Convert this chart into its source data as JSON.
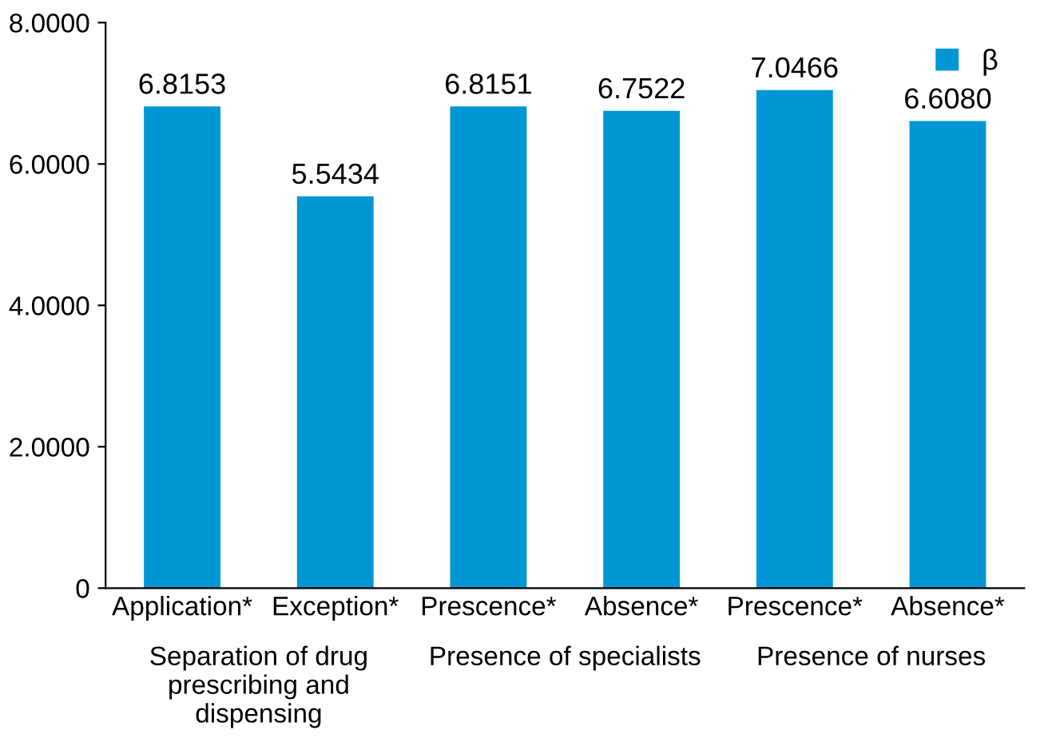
{
  "chart_data": {
    "type": "bar",
    "categories": [
      "Application*",
      "Exception*",
      "Prescence*",
      "Absence*",
      "Prescence*",
      "Absence*"
    ],
    "series": [
      {
        "name": "β",
        "color": "#0096d6",
        "values": [
          6.8153,
          5.5434,
          6.8151,
          6.7522,
          7.0466,
          6.608
        ],
        "value_labels": [
          "6.8153",
          "5.5434",
          "6.8151",
          "6.7522",
          "7.0466",
          "6.6080"
        ]
      }
    ],
    "ylim": [
      0,
      8
    ],
    "yticks": [
      0,
      {
        "value": 2,
        "label": "2.0000"
      },
      {
        "value": 4,
        "label": "4.0000"
      },
      {
        "value": 6,
        "label": "6.0000"
      },
      {
        "value": 8,
        "label": "8.0000"
      }
    ],
    "annotations": [
      "Separation of drug\nprescribing and\ndispensing",
      "Presence of specialists",
      "Presence of nurses"
    ],
    "grid": false,
    "legend": "top right"
  }
}
